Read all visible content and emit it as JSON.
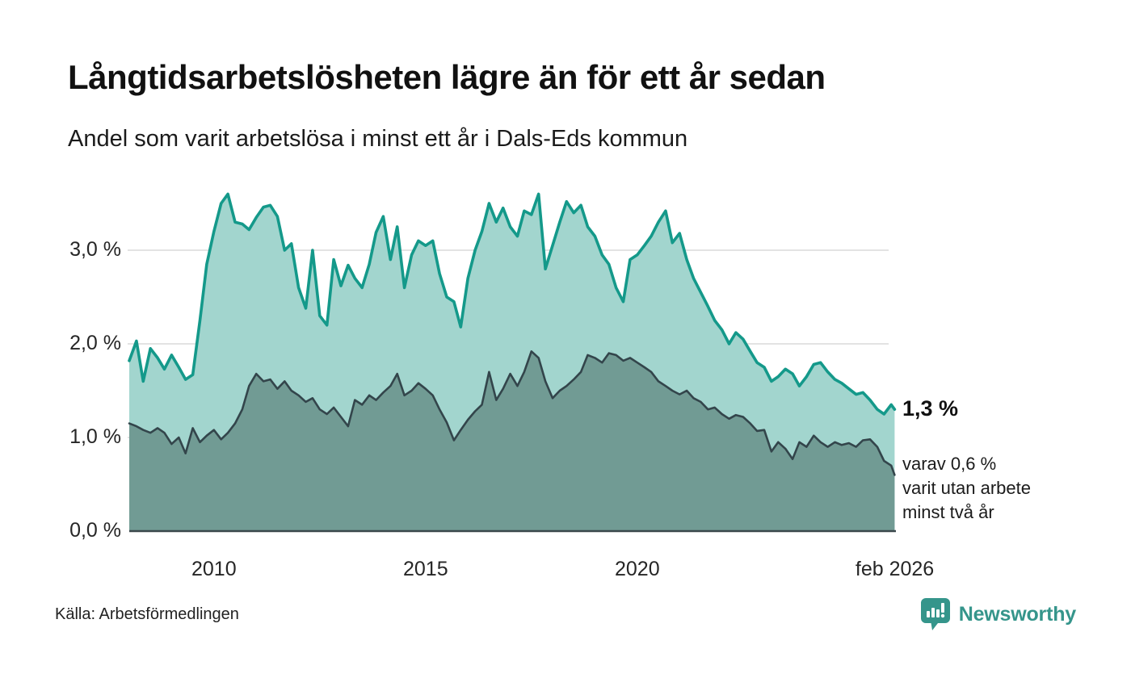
{
  "header": {
    "title": "Långtidsarbetslösheten lägre än för ett år sedan",
    "subtitle": "Andel som varit arbetslösa i minst ett år i Dals-Eds kommun"
  },
  "chart_data": {
    "type": "area",
    "title": "Långtidsarbetslösheten lägre än för ett år sedan",
    "subtitle": "Andel som varit arbetslösa i minst ett år i Dals-Eds kommun",
    "x_unit": "year (monthly observations)",
    "x_range": [
      2008.0,
      2026.083
    ],
    "ylim": [
      0,
      3.8
    ],
    "grid": "horizontal",
    "y_ticks": [
      {
        "value": 0,
        "label": "0,0 %"
      },
      {
        "value": 1,
        "label": "1,0 %"
      },
      {
        "value": 2,
        "label": "2,0 %"
      },
      {
        "value": 3,
        "label": "3,0 %"
      }
    ],
    "x_ticks": [
      {
        "value": 2010,
        "label": "2010"
      },
      {
        "value": 2015,
        "label": "2015"
      },
      {
        "value": 2020,
        "label": "2020"
      },
      {
        "value": 2026.083,
        "label": "feb 2026"
      }
    ],
    "series": [
      {
        "name": "minst ett år",
        "line_color": "#14998a",
        "fill_color": "#a2d5ce",
        "end_value": 1.3,
        "points": [
          [
            2008.0,
            1.82
          ],
          [
            2008.17,
            2.03
          ],
          [
            2008.33,
            1.6
          ],
          [
            2008.5,
            1.95
          ],
          [
            2008.67,
            1.85
          ],
          [
            2008.83,
            1.73
          ],
          [
            2009.0,
            1.88
          ],
          [
            2009.17,
            1.75
          ],
          [
            2009.33,
            1.62
          ],
          [
            2009.5,
            1.67
          ],
          [
            2009.67,
            2.25
          ],
          [
            2009.83,
            2.85
          ],
          [
            2010.0,
            3.2
          ],
          [
            2010.17,
            3.5
          ],
          [
            2010.33,
            3.6
          ],
          [
            2010.5,
            3.3
          ],
          [
            2010.67,
            3.28
          ],
          [
            2010.83,
            3.22
          ],
          [
            2011.0,
            3.35
          ],
          [
            2011.17,
            3.46
          ],
          [
            2011.33,
            3.48
          ],
          [
            2011.5,
            3.36
          ],
          [
            2011.67,
            3.0
          ],
          [
            2011.83,
            3.07
          ],
          [
            2012.0,
            2.6
          ],
          [
            2012.17,
            2.38
          ],
          [
            2012.33,
            3.0
          ],
          [
            2012.5,
            2.3
          ],
          [
            2012.67,
            2.2
          ],
          [
            2012.83,
            2.9
          ],
          [
            2013.0,
            2.62
          ],
          [
            2013.17,
            2.84
          ],
          [
            2013.33,
            2.7
          ],
          [
            2013.5,
            2.6
          ],
          [
            2013.67,
            2.85
          ],
          [
            2013.83,
            3.19
          ],
          [
            2014.0,
            3.36
          ],
          [
            2014.17,
            2.9
          ],
          [
            2014.33,
            3.25
          ],
          [
            2014.5,
            2.6
          ],
          [
            2014.67,
            2.95
          ],
          [
            2014.83,
            3.1
          ],
          [
            2015.0,
            3.05
          ],
          [
            2015.17,
            3.1
          ],
          [
            2015.33,
            2.75
          ],
          [
            2015.5,
            2.5
          ],
          [
            2015.67,
            2.45
          ],
          [
            2015.83,
            2.18
          ],
          [
            2016.0,
            2.7
          ],
          [
            2016.17,
            3.0
          ],
          [
            2016.33,
            3.2
          ],
          [
            2016.5,
            3.5
          ],
          [
            2016.67,
            3.3
          ],
          [
            2016.83,
            3.45
          ],
          [
            2017.0,
            3.25
          ],
          [
            2017.17,
            3.15
          ],
          [
            2017.33,
            3.42
          ],
          [
            2017.5,
            3.38
          ],
          [
            2017.67,
            3.6
          ],
          [
            2017.83,
            2.8
          ],
          [
            2018.0,
            3.05
          ],
          [
            2018.17,
            3.3
          ],
          [
            2018.33,
            3.52
          ],
          [
            2018.5,
            3.4
          ],
          [
            2018.67,
            3.48
          ],
          [
            2018.83,
            3.25
          ],
          [
            2019.0,
            3.15
          ],
          [
            2019.17,
            2.95
          ],
          [
            2019.33,
            2.85
          ],
          [
            2019.5,
            2.6
          ],
          [
            2019.67,
            2.45
          ],
          [
            2019.83,
            2.9
          ],
          [
            2020.0,
            2.95
          ],
          [
            2020.17,
            3.05
          ],
          [
            2020.33,
            3.15
          ],
          [
            2020.5,
            3.3
          ],
          [
            2020.67,
            3.42
          ],
          [
            2020.83,
            3.08
          ],
          [
            2021.0,
            3.18
          ],
          [
            2021.17,
            2.9
          ],
          [
            2021.33,
            2.7
          ],
          [
            2021.5,
            2.55
          ],
          [
            2021.67,
            2.4
          ],
          [
            2021.83,
            2.25
          ],
          [
            2022.0,
            2.15
          ],
          [
            2022.17,
            2.0
          ],
          [
            2022.33,
            2.12
          ],
          [
            2022.5,
            2.05
          ],
          [
            2022.67,
            1.92
          ],
          [
            2022.83,
            1.8
          ],
          [
            2023.0,
            1.75
          ],
          [
            2023.17,
            1.6
          ],
          [
            2023.33,
            1.65
          ],
          [
            2023.5,
            1.73
          ],
          [
            2023.67,
            1.68
          ],
          [
            2023.83,
            1.55
          ],
          [
            2024.0,
            1.65
          ],
          [
            2024.17,
            1.78
          ],
          [
            2024.33,
            1.8
          ],
          [
            2024.5,
            1.7
          ],
          [
            2024.67,
            1.62
          ],
          [
            2024.83,
            1.58
          ],
          [
            2025.0,
            1.52
          ],
          [
            2025.17,
            1.46
          ],
          [
            2025.33,
            1.48
          ],
          [
            2025.5,
            1.4
          ],
          [
            2025.67,
            1.3
          ],
          [
            2025.83,
            1.25
          ],
          [
            2026.0,
            1.35
          ],
          [
            2026.08,
            1.3
          ]
        ]
      },
      {
        "name": "minst två år",
        "line_color": "#33454b",
        "fill_color": "#719b94",
        "end_value": 0.6,
        "points": [
          [
            2008.0,
            1.15
          ],
          [
            2008.17,
            1.12
          ],
          [
            2008.33,
            1.08
          ],
          [
            2008.5,
            1.05
          ],
          [
            2008.67,
            1.1
          ],
          [
            2008.83,
            1.05
          ],
          [
            2009.0,
            0.93
          ],
          [
            2009.17,
            1.0
          ],
          [
            2009.33,
            0.83
          ],
          [
            2009.5,
            1.1
          ],
          [
            2009.67,
            0.95
          ],
          [
            2009.83,
            1.02
          ],
          [
            2010.0,
            1.08
          ],
          [
            2010.17,
            0.98
          ],
          [
            2010.33,
            1.05
          ],
          [
            2010.5,
            1.15
          ],
          [
            2010.67,
            1.3
          ],
          [
            2010.83,
            1.55
          ],
          [
            2011.0,
            1.68
          ],
          [
            2011.17,
            1.6
          ],
          [
            2011.33,
            1.62
          ],
          [
            2011.5,
            1.52
          ],
          [
            2011.67,
            1.6
          ],
          [
            2011.83,
            1.5
          ],
          [
            2012.0,
            1.45
          ],
          [
            2012.17,
            1.38
          ],
          [
            2012.33,
            1.42
          ],
          [
            2012.5,
            1.3
          ],
          [
            2012.67,
            1.25
          ],
          [
            2012.83,
            1.32
          ],
          [
            2013.0,
            1.22
          ],
          [
            2013.17,
            1.12
          ],
          [
            2013.33,
            1.4
          ],
          [
            2013.5,
            1.35
          ],
          [
            2013.67,
            1.45
          ],
          [
            2013.83,
            1.4
          ],
          [
            2014.0,
            1.48
          ],
          [
            2014.17,
            1.55
          ],
          [
            2014.33,
            1.68
          ],
          [
            2014.5,
            1.45
          ],
          [
            2014.67,
            1.5
          ],
          [
            2014.83,
            1.58
          ],
          [
            2015.0,
            1.52
          ],
          [
            2015.17,
            1.45
          ],
          [
            2015.33,
            1.3
          ],
          [
            2015.5,
            1.16
          ],
          [
            2015.67,
            0.97
          ],
          [
            2015.83,
            1.08
          ],
          [
            2016.0,
            1.19
          ],
          [
            2016.17,
            1.28
          ],
          [
            2016.33,
            1.35
          ],
          [
            2016.5,
            1.7
          ],
          [
            2016.67,
            1.4
          ],
          [
            2016.83,
            1.52
          ],
          [
            2017.0,
            1.68
          ],
          [
            2017.17,
            1.55
          ],
          [
            2017.33,
            1.7
          ],
          [
            2017.5,
            1.92
          ],
          [
            2017.67,
            1.85
          ],
          [
            2017.83,
            1.6
          ],
          [
            2018.0,
            1.42
          ],
          [
            2018.17,
            1.5
          ],
          [
            2018.33,
            1.55
          ],
          [
            2018.5,
            1.62
          ],
          [
            2018.67,
            1.7
          ],
          [
            2018.83,
            1.88
          ],
          [
            2019.0,
            1.85
          ],
          [
            2019.17,
            1.8
          ],
          [
            2019.33,
            1.9
          ],
          [
            2019.5,
            1.88
          ],
          [
            2019.67,
            1.82
          ],
          [
            2019.83,
            1.85
          ],
          [
            2020.0,
            1.8
          ],
          [
            2020.17,
            1.75
          ],
          [
            2020.33,
            1.7
          ],
          [
            2020.5,
            1.6
          ],
          [
            2020.67,
            1.55
          ],
          [
            2020.83,
            1.5
          ],
          [
            2021.0,
            1.46
          ],
          [
            2021.17,
            1.5
          ],
          [
            2021.33,
            1.42
          ],
          [
            2021.5,
            1.38
          ],
          [
            2021.67,
            1.3
          ],
          [
            2021.83,
            1.32
          ],
          [
            2022.0,
            1.25
          ],
          [
            2022.17,
            1.2
          ],
          [
            2022.33,
            1.24
          ],
          [
            2022.5,
            1.22
          ],
          [
            2022.67,
            1.15
          ],
          [
            2022.83,
            1.07
          ],
          [
            2023.0,
            1.08
          ],
          [
            2023.17,
            0.85
          ],
          [
            2023.33,
            0.95
          ],
          [
            2023.5,
            0.88
          ],
          [
            2023.67,
            0.77
          ],
          [
            2023.83,
            0.95
          ],
          [
            2024.0,
            0.9
          ],
          [
            2024.17,
            1.02
          ],
          [
            2024.33,
            0.95
          ],
          [
            2024.5,
            0.9
          ],
          [
            2024.67,
            0.95
          ],
          [
            2024.83,
            0.92
          ],
          [
            2025.0,
            0.94
          ],
          [
            2025.17,
            0.9
          ],
          [
            2025.33,
            0.97
          ],
          [
            2025.5,
            0.98
          ],
          [
            2025.67,
            0.9
          ],
          [
            2025.83,
            0.75
          ],
          [
            2026.0,
            0.7
          ],
          [
            2026.08,
            0.6
          ]
        ]
      }
    ],
    "annotations": {
      "end_value_label": "1,3 %",
      "end_sub_label": "varav 0,6 %\nvarit utan arbete\nminst två år"
    },
    "legend_position": "none"
  },
  "footer": {
    "source": "Källa: Arbetsförmedlingen",
    "brand": "Newsworthy"
  },
  "colors": {
    "accent_teal": "#14998a",
    "light_fill": "#a2d5ce",
    "dark_fill": "#719b94",
    "dark_line": "#33454b",
    "gridline": "#e3e3e3",
    "axis": "#3b484c",
    "brand_teal": "#35958b"
  },
  "icons": {
    "brand_logo": "newsworthy-speech-bubble-barchart-icon"
  }
}
